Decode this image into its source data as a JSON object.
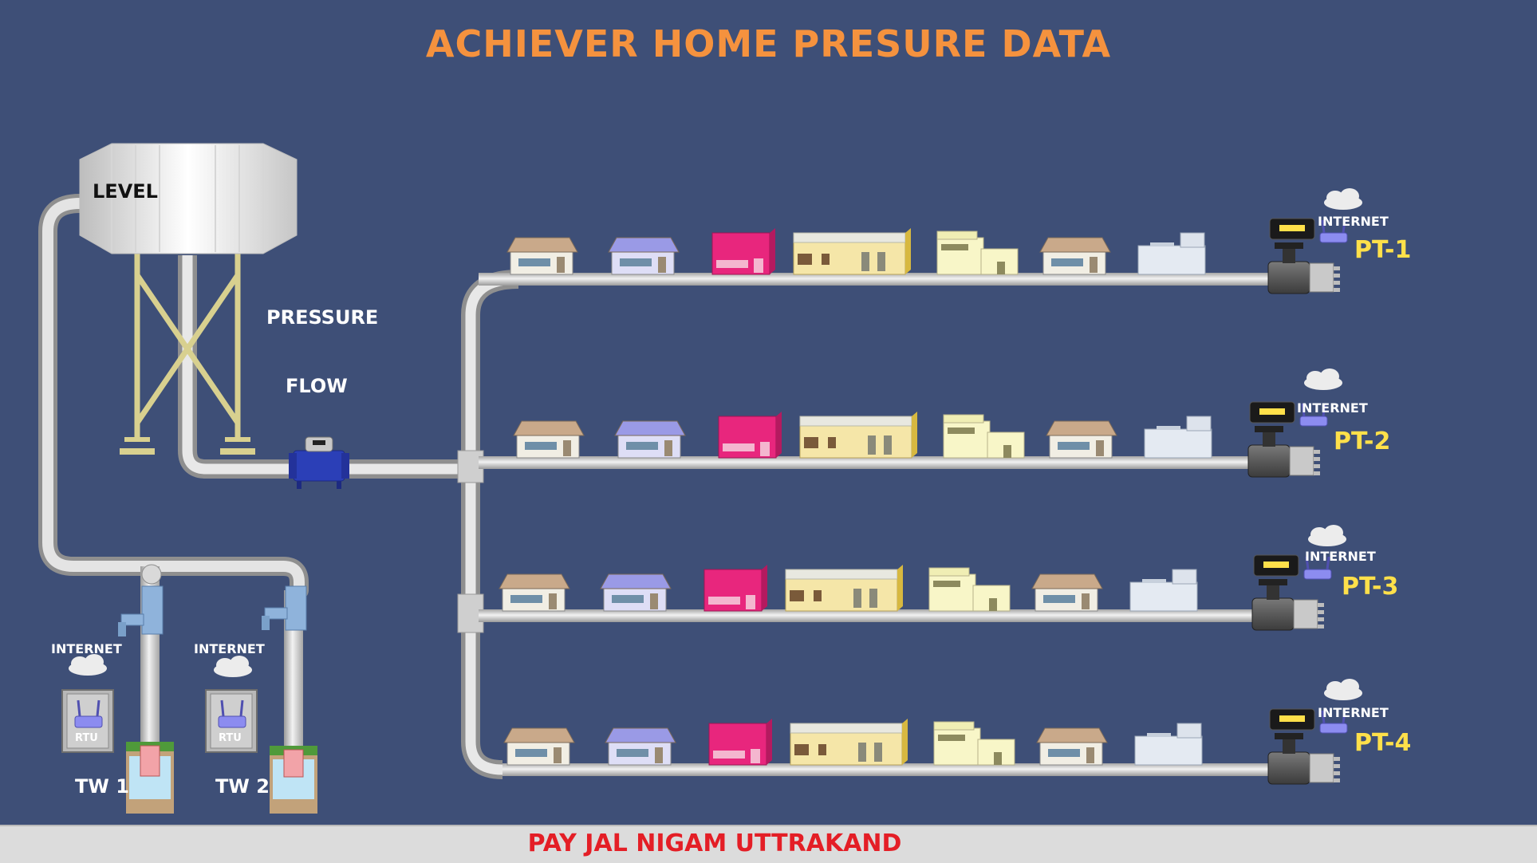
{
  "title": "ACHIEVER HOME PRESURE DATA",
  "footer": "PAY JAL NIGAM UTTRAKAND",
  "tank": {
    "level_label": "LEVEL",
    "pressure_label": "PRESSURE",
    "flow_label": "FLOW"
  },
  "tubewells": [
    {
      "name": "TW 1",
      "rtu_label": "RTU",
      "internet_label": "INTERNET"
    },
    {
      "name": "TW 2",
      "rtu_label": "RTU",
      "internet_label": "INTERNET"
    }
  ],
  "pressure_points": [
    {
      "name": "PT-1",
      "internet_label": "INTERNET"
    },
    {
      "name": "PT-2",
      "internet_label": "INTERNET"
    },
    {
      "name": "PT-3",
      "internet_label": "INTERNET"
    },
    {
      "name": "PT-4",
      "internet_label": "INTERNET"
    }
  ],
  "colors": {
    "background": "#3e4f77",
    "title": "#f5923e",
    "footer_text": "#e41e26",
    "pt_label": "#ffe04a",
    "pipe": "#d9d9d9"
  }
}
